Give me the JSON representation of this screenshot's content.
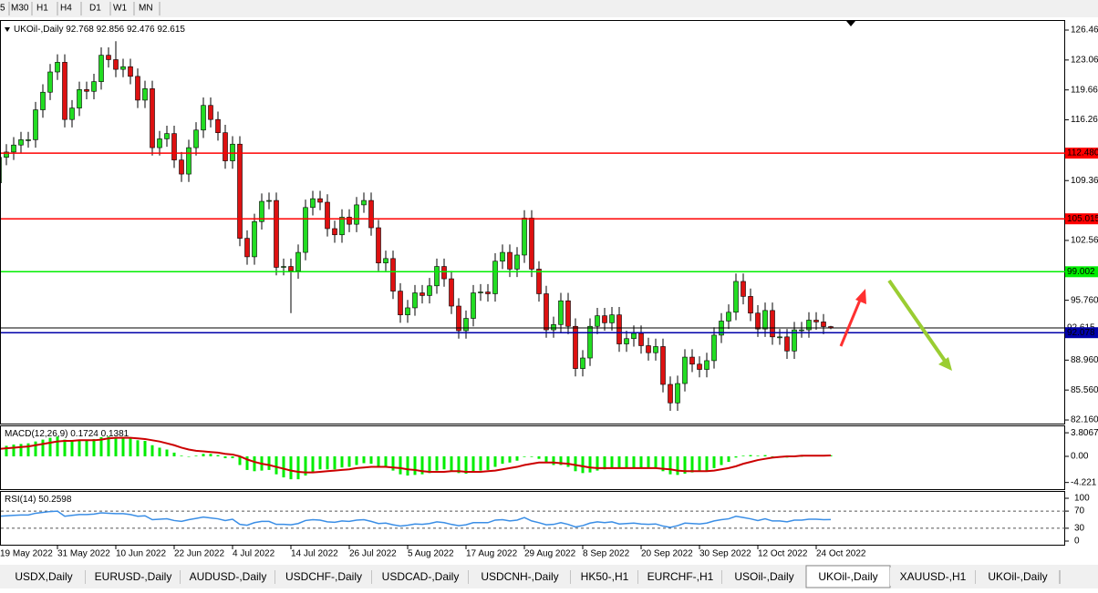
{
  "toolbar": {
    "timeframes": [
      "5",
      "M30",
      "H1",
      "H4",
      "D1",
      "W1",
      "MN"
    ]
  },
  "tabs": [
    "USDX,Daily",
    "EURUSD-,Daily",
    "AUDUSD-,Daily",
    "USDCHF-,Daily",
    "USDCAD-,Daily",
    "USDCNH-,Daily",
    "HK50-,H1",
    "EURCHF-,H1",
    "USOil-,Daily",
    "UKOil-,Daily",
    "XAUUSD-,H1",
    "UKOil-,Daily"
  ],
  "active_tab": 9,
  "chart_data": {
    "type": "candlestick",
    "title": "UKOil-,Daily",
    "categories": [
      null,
      null,
      null,
      "19 May 2022",
      null,
      null,
      null,
      null,
      null,
      null,
      null,
      "31 May 2022",
      null,
      null,
      null,
      null,
      null,
      null,
      null,
      "10 Jun 2022",
      null,
      null,
      null,
      null,
      null,
      null,
      null,
      "22 Jun 2022",
      null,
      null,
      null,
      null,
      null,
      null,
      null,
      "4 Jul 2022",
      null,
      null,
      null,
      null,
      null,
      null,
      null,
      "14 Jul 2022",
      null,
      null,
      null,
      null,
      null,
      null,
      null,
      "26 Jul 2022",
      null,
      null,
      null,
      null,
      null,
      null,
      null,
      "5 Aug 2022",
      null,
      null,
      null,
      null,
      null,
      null,
      null,
      "17 Aug 2022",
      null,
      null,
      null,
      null,
      null,
      null,
      null,
      "29 Aug 2022",
      null,
      null,
      null,
      null,
      null,
      null,
      null,
      "8 Sep 2022",
      null,
      null,
      null,
      null,
      null,
      null,
      null,
      "20 Sep 2022",
      null,
      null,
      null,
      null,
      null,
      null,
      null,
      "30 Sep 2022",
      null,
      null,
      null,
      null,
      null,
      null,
      null,
      "12 Oct 2022",
      null,
      null,
      null,
      null,
      null,
      null,
      null,
      "24 Oct 2022",
      null,
      null
    ],
    "open": [
      108.9,
      110.1,
      111.9,
      109.1,
      112.0,
      112.6,
      113.4,
      114.0,
      114.0,
      117.4,
      119.4,
      121.7,
      122.8,
      116.3,
      117.6,
      119.7,
      119.5,
      120.6,
      123.6,
      123.1,
      122.0,
      122.3,
      121.2,
      118.5,
      119.8,
      113.1,
      114.1,
      114.7,
      111.7,
      110.1,
      113.1,
      115.1,
      117.9,
      116.3,
      114.8,
      111.6,
      113.5,
      102.8,
      100.7,
      104.7,
      107.0,
      107.1,
      99.5,
      99.6,
      99.1,
      101.2,
      106.3,
      107.3,
      106.9,
      103.9,
      103.2,
      105.2,
      104.4,
      106.6,
      107.1,
      104.0,
      100.0,
      100.5,
      96.8,
      94.1,
      94.9,
      96.6,
      96.3,
      97.4,
      99.6,
      98.2,
      95.1,
      92.3,
      93.7,
      96.6,
      96.7,
      96.5,
      100.2,
      101.2,
      99.3,
      100.9,
      105.1,
      99.3,
      96.5,
      92.4,
      93.0,
      95.7,
      92.8,
      88.0,
      89.2,
      92.8,
      94.0,
      93.2,
      94.1,
      90.8,
      91.4,
      92.0,
      90.6,
      89.8,
      90.5,
      86.2,
      84.1,
      86.3,
      89.3,
      88.5,
      87.9,
      88.9,
      91.8,
      93.4,
      94.4,
      97.9,
      96.2,
      94.3,
      92.5,
      94.6,
      91.6,
      91.6,
      90.0,
      92.4,
      92.4,
      93.5,
      93.3,
      92.768
    ],
    "high": [
      111.0,
      112.8,
      112.8,
      112.9,
      113.5,
      114.3,
      114.9,
      114.9,
      118.3,
      120.3,
      122.6,
      123.7,
      123.7,
      118.5,
      120.6,
      120.6,
      121.5,
      124.5,
      124.5,
      125.2,
      123.2,
      123.2,
      122.1,
      120.7,
      120.7,
      115.0,
      115.6,
      115.6,
      112.6,
      114.0,
      116.0,
      118.8,
      118.8,
      117.2,
      115.7,
      114.4,
      114.4,
      103.7,
      105.6,
      107.9,
      108.0,
      108.0,
      100.5,
      100.5,
      102.1,
      107.2,
      108.2,
      108.2,
      107.8,
      104.8,
      106.1,
      106.1,
      107.5,
      108.0,
      108.0,
      104.9,
      101.4,
      101.4,
      97.7,
      95.8,
      97.5,
      97.5,
      98.3,
      100.5,
      100.5,
      99.1,
      96.0,
      94.6,
      97.5,
      97.6,
      97.6,
      101.1,
      102.1,
      102.1,
      101.8,
      106.0,
      106.0,
      100.2,
      97.4,
      93.9,
      96.6,
      96.6,
      93.7,
      90.1,
      93.7,
      94.9,
      94.9,
      95.0,
      95.0,
      92.3,
      92.9,
      92.9,
      91.5,
      91.4,
      91.4,
      87.1,
      87.2,
      90.2,
      90.2,
      89.4,
      89.8,
      92.7,
      94.3,
      95.3,
      98.8,
      98.8,
      97.1,
      95.2,
      95.5,
      95.5,
      92.5,
      92.5,
      93.3,
      93.3,
      94.4,
      94.4,
      94.2,
      92.856
    ],
    "low": [
      108.0,
      109.2,
      108.2,
      108.2,
      111.1,
      111.7,
      112.5,
      113.1,
      113.1,
      116.5,
      118.5,
      120.8,
      115.4,
      115.4,
      116.7,
      118.6,
      118.6,
      119.7,
      122.2,
      121.1,
      121.1,
      120.3,
      117.6,
      117.6,
      112.2,
      112.2,
      113.2,
      110.8,
      109.2,
      109.2,
      112.2,
      114.2,
      115.4,
      113.9,
      110.7,
      110.7,
      101.9,
      99.8,
      99.8,
      103.8,
      106.1,
      98.6,
      98.6,
      94.3,
      98.2,
      100.3,
      105.4,
      106.0,
      103.0,
      102.3,
      102.3,
      103.5,
      103.5,
      105.7,
      103.1,
      99.1,
      99.1,
      95.9,
      93.2,
      93.2,
      94.0,
      95.4,
      95.4,
      96.5,
      97.3,
      94.2,
      91.4,
      91.4,
      92.8,
      95.7,
      95.6,
      95.6,
      99.3,
      98.4,
      98.4,
      100.0,
      98.4,
      95.6,
      91.5,
      91.5,
      92.1,
      91.9,
      87.1,
      87.1,
      88.3,
      91.9,
      92.3,
      92.3,
      89.9,
      89.9,
      90.5,
      89.7,
      88.9,
      88.9,
      85.3,
      83.2,
      83.2,
      85.4,
      87.6,
      87.0,
      87.0,
      88.0,
      90.9,
      92.5,
      93.5,
      95.3,
      93.4,
      91.6,
      91.6,
      90.7,
      90.7,
      89.1,
      89.1,
      91.5,
      91.5,
      92.4,
      91.9,
      92.476
    ],
    "close": [
      110.1,
      111.9,
      109.1,
      112.0,
      112.6,
      113.4,
      114.0,
      114.0,
      117.4,
      119.4,
      121.7,
      122.8,
      116.3,
      117.6,
      119.7,
      119.5,
      120.6,
      123.6,
      123.1,
      122.0,
      122.3,
      121.2,
      118.5,
      119.8,
      113.1,
      114.1,
      114.7,
      111.7,
      110.1,
      113.1,
      115.1,
      117.9,
      116.3,
      114.8,
      111.6,
      113.5,
      102.8,
      100.7,
      104.7,
      107.0,
      107.1,
      99.5,
      99.6,
      99.1,
      101.2,
      106.3,
      107.3,
      106.9,
      103.9,
      103.2,
      105.2,
      104.4,
      106.6,
      107.1,
      104.0,
      100.0,
      100.5,
      96.8,
      94.1,
      94.9,
      96.6,
      96.3,
      97.4,
      99.6,
      98.2,
      95.1,
      92.3,
      93.7,
      96.6,
      96.7,
      96.5,
      100.2,
      101.2,
      99.3,
      100.9,
      105.1,
      99.3,
      96.5,
      92.4,
      93.0,
      95.7,
      92.8,
      88.0,
      89.2,
      92.8,
      94.0,
      93.2,
      94.1,
      90.8,
      91.4,
      92.0,
      90.6,
      89.8,
      90.5,
      86.2,
      84.1,
      86.3,
      89.3,
      88.5,
      87.9,
      88.9,
      91.8,
      93.4,
      94.4,
      97.9,
      96.2,
      94.3,
      92.5,
      94.6,
      91.6,
      91.6,
      90.0,
      92.4,
      92.4,
      93.5,
      93.3,
      92.768,
      92.615
    ],
    "up_color": "#22dd22",
    "down_color": "#dd1111",
    "ylim": [
      81.75,
      127.6
    ],
    "yticks": [
      {
        "value": 126.46,
        "label": "126.460"
      },
      {
        "value": 123.06,
        "label": "123.060"
      },
      {
        "value": 119.66,
        "label": "119.660"
      },
      {
        "value": 116.26,
        "label": "116.260"
      },
      {
        "value": 109.36,
        "label": "109.360"
      },
      {
        "value": 102.56,
        "label": "102.560"
      },
      {
        "value": 95.76,
        "label": "95.760"
      },
      {
        "value": 88.96,
        "label": "88.960"
      },
      {
        "value": 85.56,
        "label": "85.560"
      },
      {
        "value": 82.16,
        "label": "82.160"
      }
    ],
    "levels": [
      {
        "value": 112.48,
        "label": "112.480",
        "color": "#ff0000"
      },
      {
        "value": 105.015,
        "color": "#ff0000"
      },
      {
        "value": 99.002,
        "color": "#00ee00"
      },
      {
        "value": 92.615,
        "color": "#000000"
      },
      {
        "value": 92.078,
        "color": "#0000aa"
      }
    ],
    "macd": {
      "title": "MACD(12,26,9)",
      "histogram_color": "#00ee00",
      "signal_color": "#cc0000",
      "histogram": [
        1.2,
        1.4,
        1.3,
        1.5,
        1.7,
        1.9,
        2.0,
        2.1,
        2.4,
        2.7,
        3.0,
        3.2,
        2.7,
        2.6,
        2.7,
        2.7,
        2.8,
        3.1,
        3.2,
        3.1,
        3.1,
        2.9,
        2.6,
        2.5,
        1.8,
        1.4,
        1.1,
        0.6,
        0.1,
        0.0,
        0.1,
        0.4,
        0.4,
        0.2,
        -0.3,
        -0.3,
        -1.4,
        -2.2,
        -2.4,
        -2.3,
        -2.2,
        -2.9,
        -3.4,
        -3.7,
        -3.7,
        -3.1,
        -2.5,
        -2.1,
        -2.1,
        -2.1,
        -1.8,
        -1.7,
        -1.4,
        -1.1,
        -1.2,
        -1.6,
        -1.8,
        -2.3,
        -2.9,
        -3.1,
        -3.0,
        -2.9,
        -2.7,
        -2.3,
        -2.1,
        -2.3,
        -2.7,
        -2.8,
        -2.5,
        -2.3,
        -2.2,
        -1.7,
        -1.2,
        -1.0,
        -0.7,
        -0.1,
        -0.1,
        -0.4,
        -1.1,
        -1.4,
        -1.4,
        -1.7,
        -2.4,
        -2.7,
        -2.6,
        -2.3,
        -2.1,
        -1.8,
        -1.9,
        -1.9,
        -1.8,
        -1.9,
        -2.0,
        -2.0,
        -2.4,
        -2.9,
        -3.0,
        -2.8,
        -2.6,
        -2.5,
        -2.3,
        -1.9,
        -1.4,
        -0.9,
        -0.2,
        0.1,
        0.2,
        0.1,
        0.2,
        0.0,
        -0.1,
        -0.2,
        -0.1,
        0.0,
        0.1,
        0.2,
        0.2,
        0.1724
      ],
      "signal": [
        1.0,
        1.1,
        1.2,
        1.2,
        1.3,
        1.4,
        1.5,
        1.6,
        1.8,
        2.0,
        2.2,
        2.4,
        2.5,
        2.5,
        2.6,
        2.6,
        2.6,
        2.7,
        2.9,
        3.0,
        3.0,
        3.0,
        2.9,
        2.8,
        2.6,
        2.4,
        2.1,
        1.8,
        1.4,
        1.1,
        0.9,
        0.8,
        0.7,
        0.6,
        0.4,
        0.3,
        0.0,
        -0.5,
        -0.9,
        -1.2,
        -1.4,
        -1.7,
        -2.0,
        -2.3,
        -2.5,
        -2.6,
        -2.6,
        -2.5,
        -2.4,
        -2.3,
        -2.2,
        -2.1,
        -1.9,
        -1.8,
        -1.7,
        -1.7,
        -1.7,
        -1.8,
        -1.9,
        -2.1,
        -2.2,
        -2.4,
        -2.5,
        -2.5,
        -2.5,
        -2.4,
        -2.4,
        -2.5,
        -2.5,
        -2.5,
        -2.4,
        -2.3,
        -2.1,
        -1.9,
        -1.7,
        -1.4,
        -1.2,
        -1.0,
        -1.0,
        -1.0,
        -1.1,
        -1.2,
        -1.4,
        -1.6,
        -1.8,
        -1.9,
        -1.9,
        -1.9,
        -1.9,
        -1.9,
        -1.9,
        -1.9,
        -1.9,
        -1.9,
        -2.0,
        -2.1,
        -2.3,
        -2.4,
        -2.4,
        -2.4,
        -2.4,
        -2.3,
        -2.1,
        -1.9,
        -1.6,
        -1.2,
        -0.9,
        -0.6,
        -0.4,
        -0.2,
        -0.1,
        0.0,
        0.0,
        0.1,
        0.1,
        0.1,
        0.1,
        0.1381
      ],
      "ylim": [
        -5.3,
        5.0
      ],
      "yticks": [
        3.8067,
        {
          "value": 0,
          "label": "0.00"
        },
        -4.221
      ]
    },
    "rsi": {
      "title": "RSI(14)",
      "color": "#3a8ee6",
      "values": [
        55,
        58,
        53,
        58,
        59,
        60,
        61,
        61,
        65,
        67,
        69,
        70,
        58,
        60,
        62,
        62,
        63,
        66,
        65,
        64,
        64,
        62,
        58,
        59,
        50,
        51,
        52,
        48,
        46,
        50,
        53,
        56,
        54,
        52,
        48,
        51,
        39,
        37,
        43,
        46,
        46,
        39,
        39,
        38,
        41,
        48,
        50,
        49,
        45,
        44,
        47,
        46,
        49,
        50,
        46,
        41,
        42,
        38,
        35,
        37,
        40,
        39,
        41,
        45,
        43,
        39,
        36,
        38,
        43,
        43,
        43,
        49,
        50,
        47,
        49,
        55,
        47,
        43,
        38,
        39,
        43,
        39,
        33,
        36,
        42,
        45,
        43,
        45,
        40,
        41,
        42,
        40,
        39,
        40,
        35,
        32,
        36,
        42,
        41,
        40,
        42,
        47,
        50,
        52,
        58,
        55,
        52,
        48,
        52,
        47,
        47,
        45,
        49,
        49,
        51,
        51,
        50,
        50.2598
      ],
      "ylim": [
        -8.5,
        117
      ],
      "yticks": [
        100,
        70,
        30,
        0
      ],
      "levels": [
        70,
        30
      ]
    }
  }
}
